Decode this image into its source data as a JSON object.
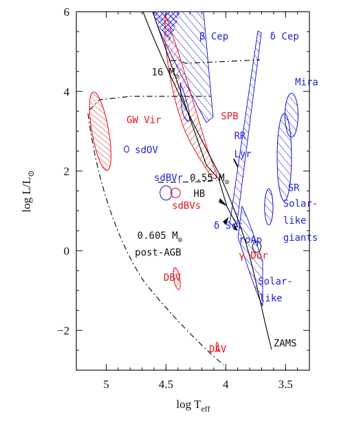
{
  "chart_data": {
    "type": "scatter",
    "xlabel": "log T",
    "xlabel_sub": "eff",
    "ylabel": "log L/L",
    "ylabel_sub": "⊙",
    "xlim": [
      5.25,
      3.3
    ],
    "ylim": [
      -3.0,
      6.0
    ],
    "xticks": [
      "5",
      "4.5",
      "4",
      "3.5"
    ],
    "xtick_values": [
      5.0,
      4.5,
      4.0,
      3.5
    ],
    "yticks": [
      "−2",
      "0",
      "2",
      "4",
      "6"
    ],
    "ytick_values": [
      -2,
      0,
      2,
      4,
      6
    ],
    "colors": {
      "blue": "#1f1fd6",
      "red": "#e0181e",
      "black": "#111111"
    },
    "regions": [
      {
        "name": "GW Vir",
        "color": "red",
        "hatch": "dense-diag",
        "center": [
          5.05,
          3.0
        ],
        "radii": [
          0.07,
          1.0
        ],
        "rot": -10
      },
      {
        "name": "sdOV",
        "color": "blue",
        "hatch": "none",
        "center": [
          4.83,
          2.55
        ],
        "radii": [
          0.02,
          0.08
        ],
        "rot": 0
      },
      {
        "name": "sdBVr",
        "color": "blue",
        "hatch": "none",
        "center": [
          4.5,
          1.45
        ],
        "radii": [
          0.05,
          0.18
        ],
        "rot": 0
      },
      {
        "name": "sdBVs",
        "color": "red",
        "hatch": "none",
        "center": [
          4.42,
          1.45
        ],
        "radii": [
          0.04,
          0.12
        ],
        "rot": 0
      },
      {
        "name": "DBV",
        "color": "red",
        "hatch": "sparse",
        "center": [
          4.41,
          -0.7
        ],
        "radii": [
          0.025,
          0.28
        ],
        "rot": -10
      },
      {
        "name": "DAV",
        "color": "red",
        "hatch": "none",
        "center": [
          4.07,
          -2.42
        ],
        "radii": [
          0.01,
          0.12
        ],
        "rot": -5
      },
      {
        "name": "Mira",
        "color": "blue",
        "hatch": "diag",
        "center": [
          3.45,
          3.4
        ],
        "radii": [
          0.055,
          0.55
        ],
        "rot": 0
      },
      {
        "name": "SR",
        "color": "blue",
        "hatch": "diag",
        "center": [
          3.51,
          2.35
        ],
        "radii": [
          0.06,
          1.1
        ],
        "rot": 0
      },
      {
        "name": "giants",
        "color": "blue",
        "hatch": "diag",
        "center": [
          3.64,
          1.1
        ],
        "radii": [
          0.035,
          0.45
        ],
        "rot": 0
      },
      {
        "name": "Solar-like",
        "color": "black",
        "hatch": "none",
        "center": [
          3.74,
          0.1
        ],
        "radii": [
          0.035,
          0.14
        ],
        "rot": 0
      }
    ],
    "labels": [
      {
        "text": "β Cep",
        "color": "blue",
        "at": [
          4.22,
          5.3
        ]
      },
      {
        "text": "δ Cep",
        "color": "blue",
        "at": [
          3.63,
          5.3
        ]
      },
      {
        "text": "16 M",
        "sub": "⊙",
        "color": "black",
        "at": [
          4.62,
          4.4
        ]
      },
      {
        "text": "Mira",
        "color": "blue",
        "at": [
          3.42,
          4.15
        ]
      },
      {
        "text": "SPB",
        "color": "red",
        "at": [
          4.04,
          3.3
        ]
      },
      {
        "text": "GW Vir",
        "color": "red",
        "at": [
          4.83,
          3.2
        ]
      },
      {
        "text": "RR",
        "color": "blue",
        "at": [
          3.93,
          2.8
        ]
      },
      {
        "text": "Lyr",
        "color": "blue",
        "at": [
          3.93,
          2.35
        ]
      },
      {
        "text": "sdOV",
        "color": "blue",
        "at": [
          4.76,
          2.45
        ]
      },
      {
        "text": "0.55 M",
        "sub": "⊙",
        "color": "black",
        "at": [
          4.3,
          1.75
        ]
      },
      {
        "text": "sdBVr",
        "color": "blue",
        "at": [
          4.6,
          1.75
        ]
      },
      {
        "text": "SR",
        "color": "blue",
        "at": [
          3.48,
          1.5
        ]
      },
      {
        "text": "HB",
        "color": "black",
        "at": [
          4.27,
          1.35
        ]
      },
      {
        "text": "sdBVs",
        "color": "red",
        "at": [
          4.45,
          1.05
        ]
      },
      {
        "text": "Solar-",
        "color": "blue",
        "at": [
          3.52,
          1.1
        ]
      },
      {
        "text": "δ Sct",
        "color": "blue",
        "at": [
          4.1,
          0.55
        ]
      },
      {
        "text": "like",
        "color": "blue",
        "at": [
          3.52,
          0.68
        ]
      },
      {
        "text": "roAp",
        "color": "blue",
        "at": [
          3.89,
          0.2
        ]
      },
      {
        "text": "giants",
        "color": "blue",
        "at": [
          3.52,
          0.25
        ]
      },
      {
        "text": "0.605 M",
        "sub": "⊙",
        "color": "black",
        "at": [
          4.74,
          0.3
        ]
      },
      {
        "text": "post-AGB",
        "color": "black",
        "at": [
          4.76,
          -0.12
        ]
      },
      {
        "text": "γ Dor",
        "color": "red",
        "at": [
          3.89,
          -0.2
        ]
      },
      {
        "text": "DBV",
        "color": "red",
        "at": [
          4.52,
          -0.75
        ]
      },
      {
        "text": "Solar-",
        "color": "blue",
        "at": [
          3.73,
          -0.85
        ]
      },
      {
        "text": "like",
        "color": "blue",
        "at": [
          3.72,
          -1.27
        ]
      },
      {
        "text": "−2",
        "color": "black",
        "at": [
          0,
          0
        ],
        "skip": true
      },
      {
        "text": "DAV",
        "color": "red",
        "at": [
          4.14,
          -2.55
        ]
      },
      {
        "text": "ZAMS",
        "color": "black",
        "at": [
          3.6,
          -2.4
        ]
      }
    ]
  }
}
